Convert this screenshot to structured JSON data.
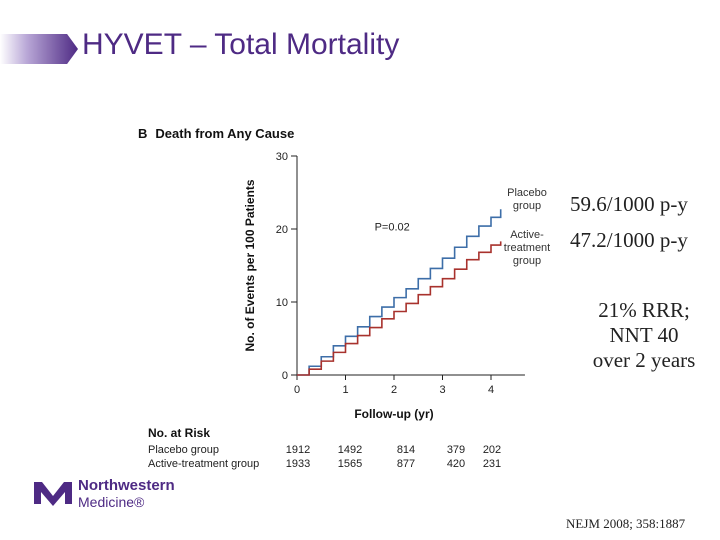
{
  "slide": {
    "title": "HYVET – Total Mortality",
    "side_notes": {
      "placebo_rate": "59.6/1000 p-y",
      "active_rate": "47.2/1000 p-y",
      "rrr_lines": [
        "21% RRR;",
        "NNT 40",
        "over 2 years"
      ]
    },
    "citation": "NEJM 2008; 358:1887",
    "logo": {
      "line1": "Northwestern",
      "line2": "Medicine®",
      "icon": "northwestern-m-icon",
      "color": "#4e2a84"
    }
  },
  "chart_data": {
    "type": "line",
    "panel_letter": "B",
    "title": "Death from Any Cause",
    "xlabel": "Follow-up (yr)",
    "ylabel": "No. of Events per 100 Patients",
    "xlim": [
      0,
      4.7
    ],
    "ylim": [
      0,
      30
    ],
    "xticks": [
      0,
      1,
      2,
      3,
      4
    ],
    "yticks": [
      0,
      10,
      20,
      30
    ],
    "annotation": "P=0.02",
    "series": [
      {
        "name": "Placebo group",
        "label_lines": [
          "Placebo",
          "group"
        ],
        "color": "#3d6ea8",
        "x": [
          0,
          0.25,
          0.5,
          0.75,
          1.0,
          1.25,
          1.5,
          1.75,
          2.0,
          2.25,
          2.5,
          2.75,
          3.0,
          3.25,
          3.5,
          3.75,
          4.0,
          4.2
        ],
        "y": [
          0,
          1.2,
          2.5,
          4.0,
          5.3,
          6.6,
          8.0,
          9.3,
          10.6,
          11.8,
          13.2,
          14.6,
          16.0,
          17.5,
          19.0,
          20.4,
          21.6,
          22.7
        ]
      },
      {
        "name": "Active-treatment group",
        "label_lines": [
          "Active-",
          "treatment",
          "group"
        ],
        "color": "#a8322d",
        "x": [
          0,
          0.25,
          0.5,
          0.75,
          1.0,
          1.25,
          1.5,
          1.75,
          2.0,
          2.25,
          2.5,
          2.75,
          3.0,
          3.25,
          3.5,
          3.75,
          4.0,
          4.2
        ],
        "y": [
          0,
          0.8,
          1.9,
          3.1,
          4.3,
          5.4,
          6.5,
          7.7,
          8.7,
          9.8,
          11.0,
          12.1,
          13.2,
          14.5,
          15.8,
          16.8,
          17.8,
          18.3
        ]
      }
    ],
    "risk_table": {
      "title": "No. at Risk",
      "rows": [
        {
          "label": "Placebo group",
          "values": [
            "1912",
            "1492",
            "814",
            "379",
            "202"
          ]
        },
        {
          "label": "Active-treatment group",
          "values": [
            "1933",
            "1565",
            "877",
            "420",
            "231"
          ]
        }
      ]
    }
  }
}
